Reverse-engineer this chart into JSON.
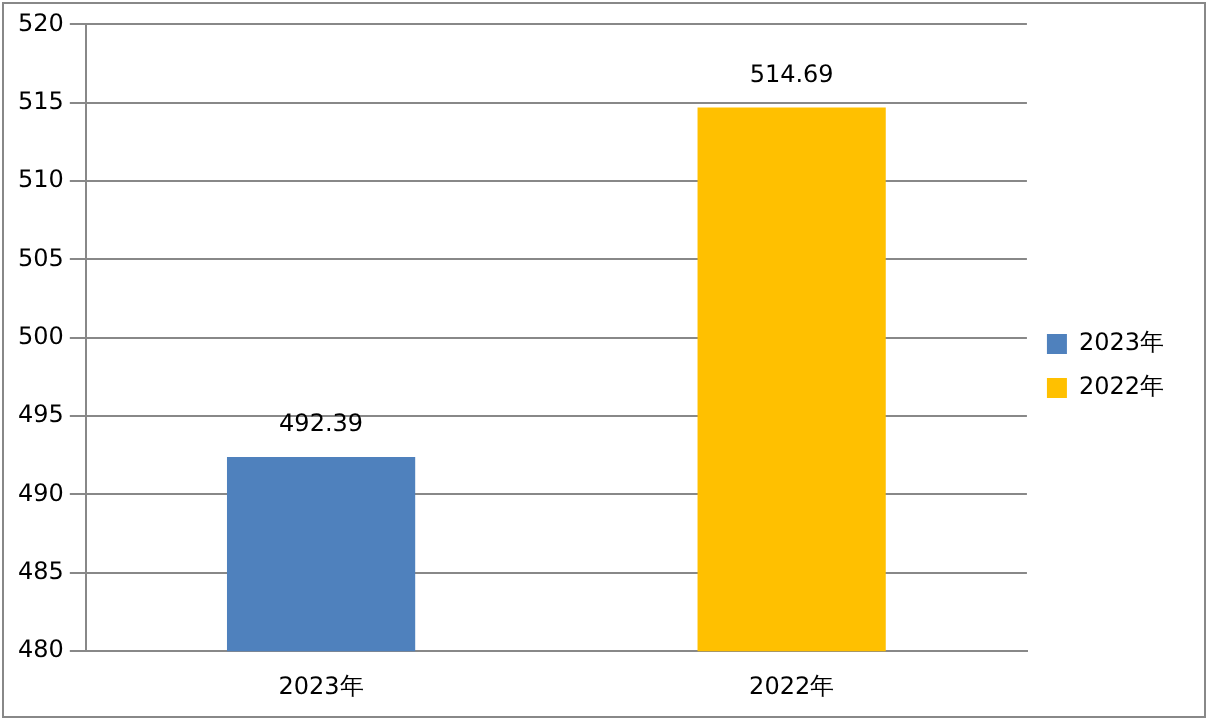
{
  "chart_data": {
    "type": "bar",
    "categories": [
      "2023年",
      "2022年"
    ],
    "series": [
      {
        "name": "2023年",
        "color": "#4f81bd",
        "values": [
          492.39,
          null
        ]
      },
      {
        "name": "2022年",
        "color": "#ffc000",
        "values": [
          null,
          514.69
        ]
      }
    ],
    "ylim": [
      480,
      520
    ],
    "yticks": [
      480,
      485,
      490,
      495,
      500,
      505,
      510,
      515,
      520
    ],
    "grid": "y",
    "legend": "right",
    "data_labels": true
  }
}
